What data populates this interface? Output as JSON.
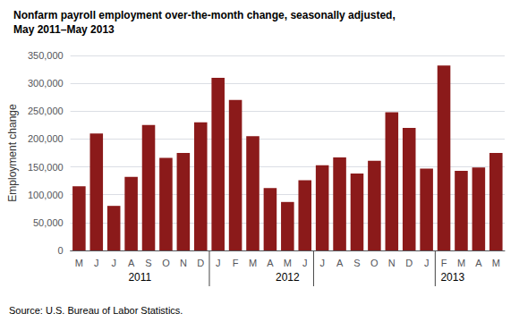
{
  "chart_data": {
    "type": "bar",
    "title": "Nonfarm payroll employment over-the-month change, seasonally adjusted,",
    "subtitle": "May 2011–May 2013",
    "ylabel": "Employment change",
    "categories": [
      "M",
      "J",
      "J",
      "A",
      "S",
      "O",
      "N",
      "D",
      "J",
      "F",
      "M",
      "A",
      "M",
      "J",
      "J",
      "A",
      "S",
      "O",
      "N",
      "D",
      "J",
      "F",
      "M",
      "A",
      "M"
    ],
    "values": [
      115000,
      210000,
      80000,
      132000,
      225000,
      166000,
      175000,
      230000,
      310000,
      270000,
      205000,
      112000,
      87000,
      126000,
      153000,
      167000,
      138000,
      161000,
      248000,
      220000,
      147000,
      332000,
      143000,
      149000,
      175000
    ],
    "color": "#8B1A1A",
    "ylim": [
      0,
      350000
    ],
    "yticks": [
      0,
      {
        "value": 50000,
        "label": "50,000"
      },
      {
        "value": 100000,
        "label": "100,000"
      },
      {
        "value": 150000,
        "label": "150,000"
      },
      {
        "value": 200000,
        "label": "200,000"
      },
      {
        "value": 250000,
        "label": "250,000"
      },
      {
        "value": 300000,
        "label": "300,000"
      },
      {
        "value": 350000,
        "label": "350,000"
      }
    ],
    "grid": true,
    "dividers": [
      7.5,
      13.5,
      20.5
    ],
    "annotations": [
      {
        "text": "2011",
        "x": 3.5
      },
      {
        "text": "2012",
        "x": 12.0
      },
      {
        "text": "2013",
        "x": 21.5
      },
      {
        "text": "Source: U.S. Bureau of Labor Statistics."
      }
    ]
  }
}
